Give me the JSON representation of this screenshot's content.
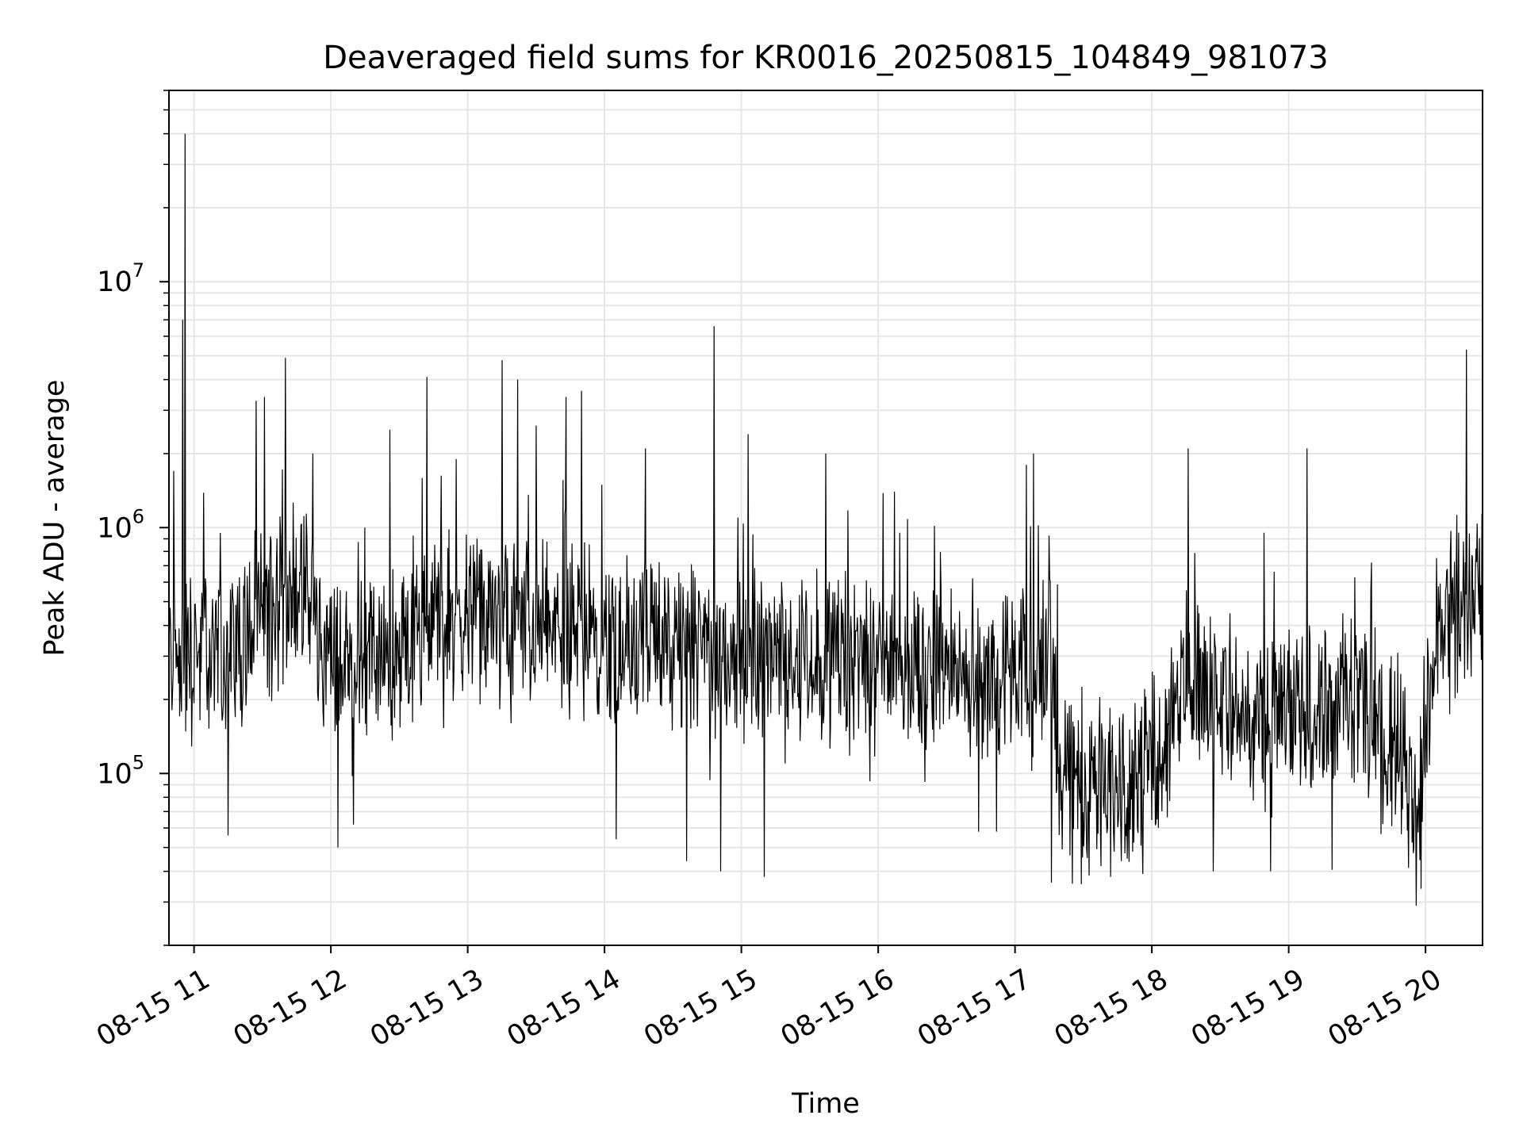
{
  "chart_data": {
    "type": "line",
    "title": "Deaveraged field sums for KR0016_20250815_104849_981073",
    "xlabel": "Time",
    "ylabel": "Peak ADU - average",
    "x_start": "08-15 10:49",
    "x_end": "08-15 20:25",
    "x_ticks": [
      "08-15 11",
      "08-15 12",
      "08-15 13",
      "08-15 14",
      "08-15 15",
      "08-15 16",
      "08-15 17",
      "08-15 18",
      "08-15 19",
      "08-15 20"
    ],
    "y_scale": "log",
    "ylim": [
      20000,
      60000000
    ],
    "y_ticks": [
      {
        "base": "10",
        "exp": "5"
      },
      {
        "base": "10",
        "exp": "6"
      },
      {
        "base": "10",
        "exp": "7"
      }
    ],
    "grid": true,
    "line_color": "#000000",
    "grid_color": "#e6e6e6",
    "series": [
      {
        "description": "approximate typical level (median trend) of the noisy signal",
        "trend": [
          {
            "x": "08-15 10:49",
            "y": 300000
          },
          {
            "x": "08-15 11:15",
            "y": 320000
          },
          {
            "x": "08-15 11:30",
            "y": 450000
          },
          {
            "x": "08-15 11:45",
            "y": 600000
          },
          {
            "x": "08-15 12:00",
            "y": 280000
          },
          {
            "x": "08-15 12:30",
            "y": 300000
          },
          {
            "x": "08-15 12:45",
            "y": 420000
          },
          {
            "x": "08-15 13:15",
            "y": 420000
          },
          {
            "x": "08-15 13:45",
            "y": 380000
          },
          {
            "x": "08-15 14:30",
            "y": 320000
          },
          {
            "x": "08-15 15:30",
            "y": 300000
          },
          {
            "x": "08-15 16:30",
            "y": 260000
          },
          {
            "x": "08-15 17:10",
            "y": 230000
          },
          {
            "x": "08-15 17:15",
            "y": 450000
          },
          {
            "x": "08-15 17:20",
            "y": 100000
          },
          {
            "x": "08-15 17:45",
            "y": 90000
          },
          {
            "x": "08-15 18:05",
            "y": 130000
          },
          {
            "x": "08-15 18:15",
            "y": 260000
          },
          {
            "x": "08-15 18:45",
            "y": 160000
          },
          {
            "x": "08-15 19:30",
            "y": 200000
          },
          {
            "x": "08-15 19:50",
            "y": 120000
          },
          {
            "x": "08-15 19:55",
            "y": 70000
          },
          {
            "x": "08-15 20:05",
            "y": 350000
          },
          {
            "x": "08-15 20:25",
            "y": 600000
          }
        ],
        "spikes": [
          {
            "x": "08-15 10:56",
            "y": 40000000
          },
          {
            "x": "08-15 10:55",
            "y": 7000000
          },
          {
            "x": "08-15 10:51",
            "y": 1700000
          },
          {
            "x": "08-15 11:31",
            "y": 3400000
          },
          {
            "x": "08-15 11:40",
            "y": 4900000
          },
          {
            "x": "08-15 11:52",
            "y": 2000000
          },
          {
            "x": "08-15 12:15",
            "y": 1000000
          },
          {
            "x": "08-15 12:26",
            "y": 2500000
          },
          {
            "x": "08-15 12:42",
            "y": 4100000
          },
          {
            "x": "08-15 12:55",
            "y": 1900000
          },
          {
            "x": "08-15 13:15",
            "y": 4800000
          },
          {
            "x": "08-15 13:22",
            "y": 4000000
          },
          {
            "x": "08-15 13:30",
            "y": 2600000
          },
          {
            "x": "08-15 13:43",
            "y": 3400000
          },
          {
            "x": "08-15 13:50",
            "y": 3600000
          },
          {
            "x": "08-15 14:18",
            "y": 2100000
          },
          {
            "x": "08-15 14:48",
            "y": 6600000
          },
          {
            "x": "08-15 15:03",
            "y": 2400000
          },
          {
            "x": "08-15 15:37",
            "y": 2000000
          },
          {
            "x": "08-15 16:07",
            "y": 1400000
          },
          {
            "x": "08-15 17:08",
            "y": 2000000
          },
          {
            "x": "08-15 17:05",
            "y": 1800000
          },
          {
            "x": "08-15 18:16",
            "y": 2100000
          },
          {
            "x": "08-15 19:08",
            "y": 2100000
          },
          {
            "x": "08-15 20:18",
            "y": 5300000
          }
        ],
        "dips": [
          {
            "x": "08-15 11:15",
            "y": 56000
          },
          {
            "x": "08-15 12:03",
            "y": 50000
          },
          {
            "x": "08-15 12:10",
            "y": 62000
          },
          {
            "x": "08-15 14:05",
            "y": 54000
          },
          {
            "x": "08-15 14:36",
            "y": 44000
          },
          {
            "x": "08-15 14:51",
            "y": 40000
          },
          {
            "x": "08-15 15:10",
            "y": 38000
          },
          {
            "x": "08-15 16:52",
            "y": 58000
          },
          {
            "x": "08-15 17:16",
            "y": 36000
          },
          {
            "x": "08-15 17:42",
            "y": 38000
          },
          {
            "x": "08-15 17:56",
            "y": 39000
          },
          {
            "x": "08-15 18:27",
            "y": 40000
          },
          {
            "x": "08-15 18:52",
            "y": 40000
          },
          {
            "x": "08-15 19:56",
            "y": 29000
          },
          {
            "x": "08-15 19:58",
            "y": 34000
          }
        ]
      }
    ]
  }
}
